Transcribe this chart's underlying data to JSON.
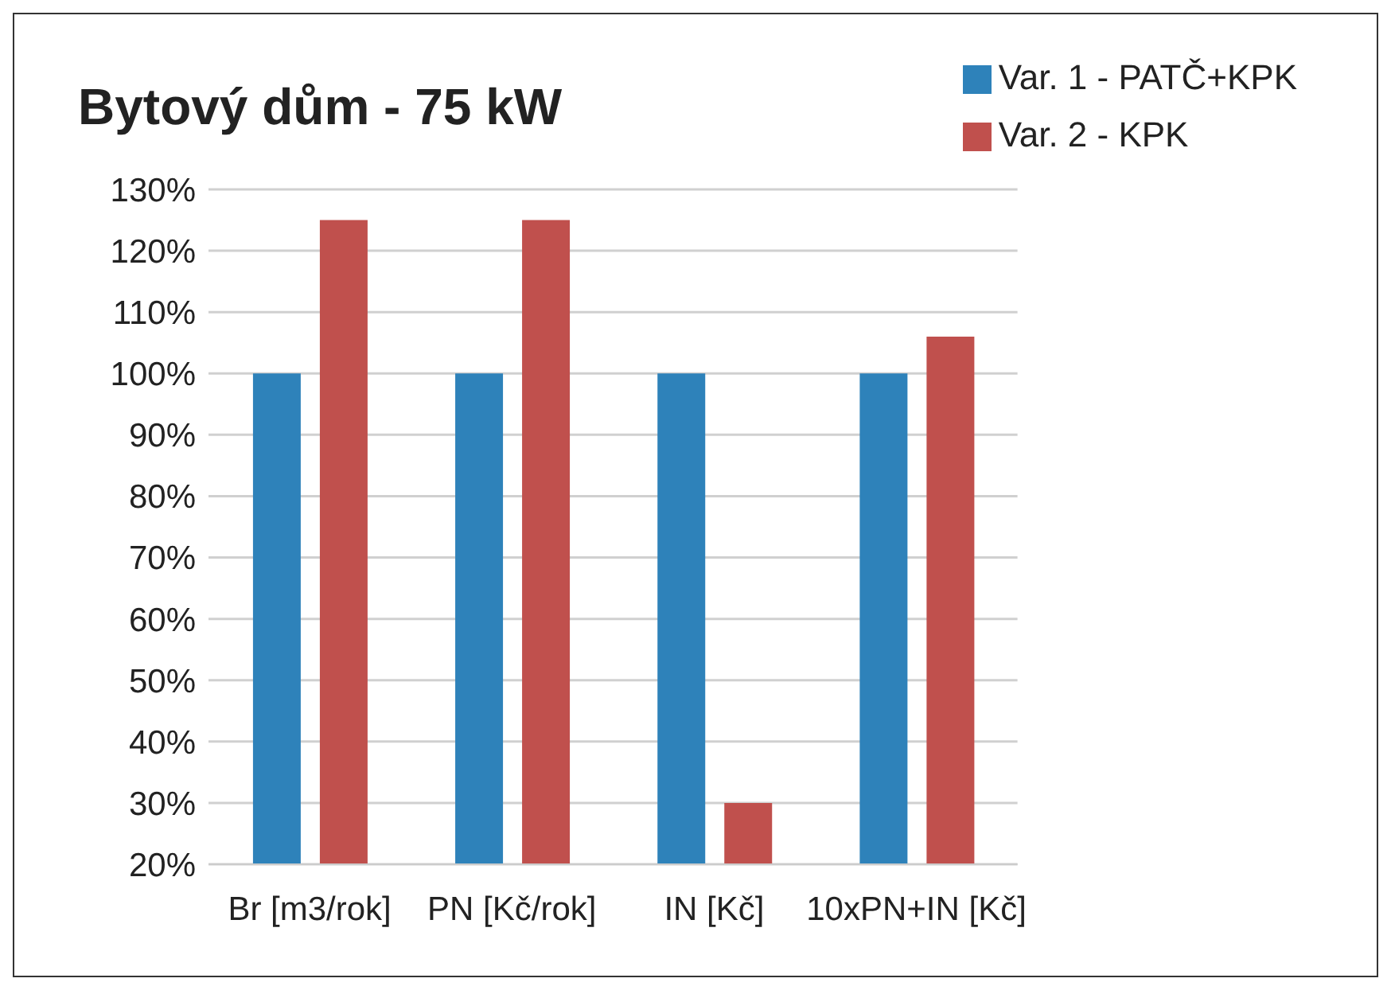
{
  "chart_data": {
    "type": "bar",
    "title": "Bytový dům - 75 kW",
    "categories": [
      "Br  [m3/rok]",
      "PN [Kč/rok]",
      "IN [Kč]",
      "10xPN+IN [Kč]"
    ],
    "series": [
      {
        "name": "Var. 1 - PATČ+KPK",
        "color": "#2e82ba",
        "values": [
          100,
          100,
          100,
          100
        ]
      },
      {
        "name": "Var. 2 - KPK",
        "color": "#c0504d",
        "values": [
          125,
          125,
          30,
          106
        ]
      }
    ],
    "ylim": [
      20,
      130
    ],
    "yticks": [
      {
        "value": 20,
        "label": "20%"
      },
      {
        "value": 30,
        "label": "30%"
      },
      {
        "value": 40,
        "label": "40%"
      },
      {
        "value": 50,
        "label": "50%"
      },
      {
        "value": 60,
        "label": "60%"
      },
      {
        "value": 70,
        "label": "70%"
      },
      {
        "value": 80,
        "label": "80%"
      },
      {
        "value": 90,
        "label": "90%"
      },
      {
        "value": 100,
        "label": "100%"
      },
      {
        "value": 110,
        "label": "110%"
      },
      {
        "value": 120,
        "label": "120%"
      },
      {
        "value": 130,
        "label": "130%"
      }
    ],
    "grid": "y",
    "legend": "top right"
  }
}
